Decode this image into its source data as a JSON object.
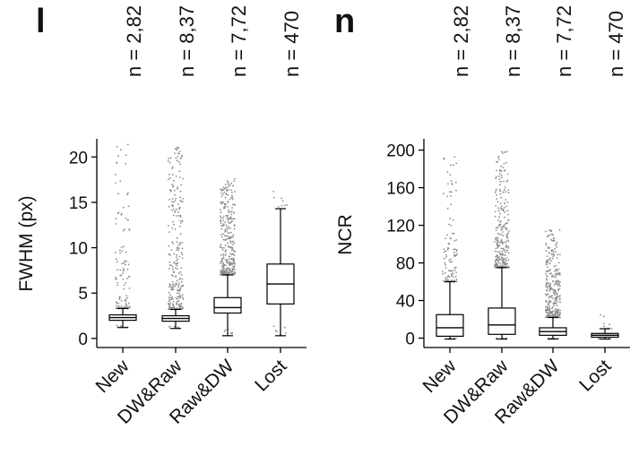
{
  "panels": {
    "left_letter": "l",
    "right_letter": "n"
  },
  "chart_data": [
    {
      "type": "box",
      "ylabel": "FWHM (px)",
      "categories": [
        "New",
        "DW&Raw",
        "Raw&DW",
        "Lost"
      ],
      "n_labels": [
        "n = 2,82",
        "n = 8,37",
        "n = 7,72",
        "n = 470"
      ],
      "ylim": [
        -1,
        22
      ],
      "yticks": [
        0,
        5,
        10,
        15,
        20
      ],
      "boxes": [
        {
          "whisker_low": 1.2,
          "q1": 2.0,
          "median": 2.3,
          "q3": 2.6,
          "whisker_high": 3.3,
          "outlier_top": 21.5
        },
        {
          "whisker_low": 1.1,
          "q1": 1.9,
          "median": 2.2,
          "q3": 2.5,
          "whisker_high": 3.2,
          "outlier_top": 21.5
        },
        {
          "whisker_low": 0.3,
          "q1": 2.8,
          "median": 3.4,
          "q3": 4.5,
          "whisker_high": 7.0,
          "outlier_top": 17.6
        },
        {
          "whisker_low": 0.3,
          "q1": 3.8,
          "median": 6.0,
          "q3": 8.2,
          "whisker_high": 14.3,
          "outlier_top": 16.2
        }
      ]
    },
    {
      "type": "box",
      "ylabel": "NCR",
      "categories": [
        "New",
        "DW&Raw",
        "Raw&DW",
        "Lost"
      ],
      "n_labels": [
        "n = 2,82",
        "n = 8,37",
        "n = 7,72",
        "n = 470"
      ],
      "ylim": [
        -10,
        212
      ],
      "yticks": [
        0,
        40,
        80,
        120,
        160,
        200
      ],
      "boxes": [
        {
          "whisker_low": -1,
          "q1": 2,
          "median": 11,
          "q3": 25,
          "whisker_high": 60,
          "outlier_top": 200
        },
        {
          "whisker_low": -1,
          "q1": 4,
          "median": 14,
          "q3": 32,
          "whisker_high": 75,
          "outlier_top": 200
        },
        {
          "whisker_low": -1,
          "q1": 3,
          "median": 7,
          "q3": 11,
          "whisker_high": 22,
          "outlier_top": 115
        },
        {
          "whisker_low": -1,
          "q1": 1,
          "median": 3,
          "q3": 5,
          "whisker_high": 10,
          "outlier_top": 35
        }
      ]
    }
  ]
}
